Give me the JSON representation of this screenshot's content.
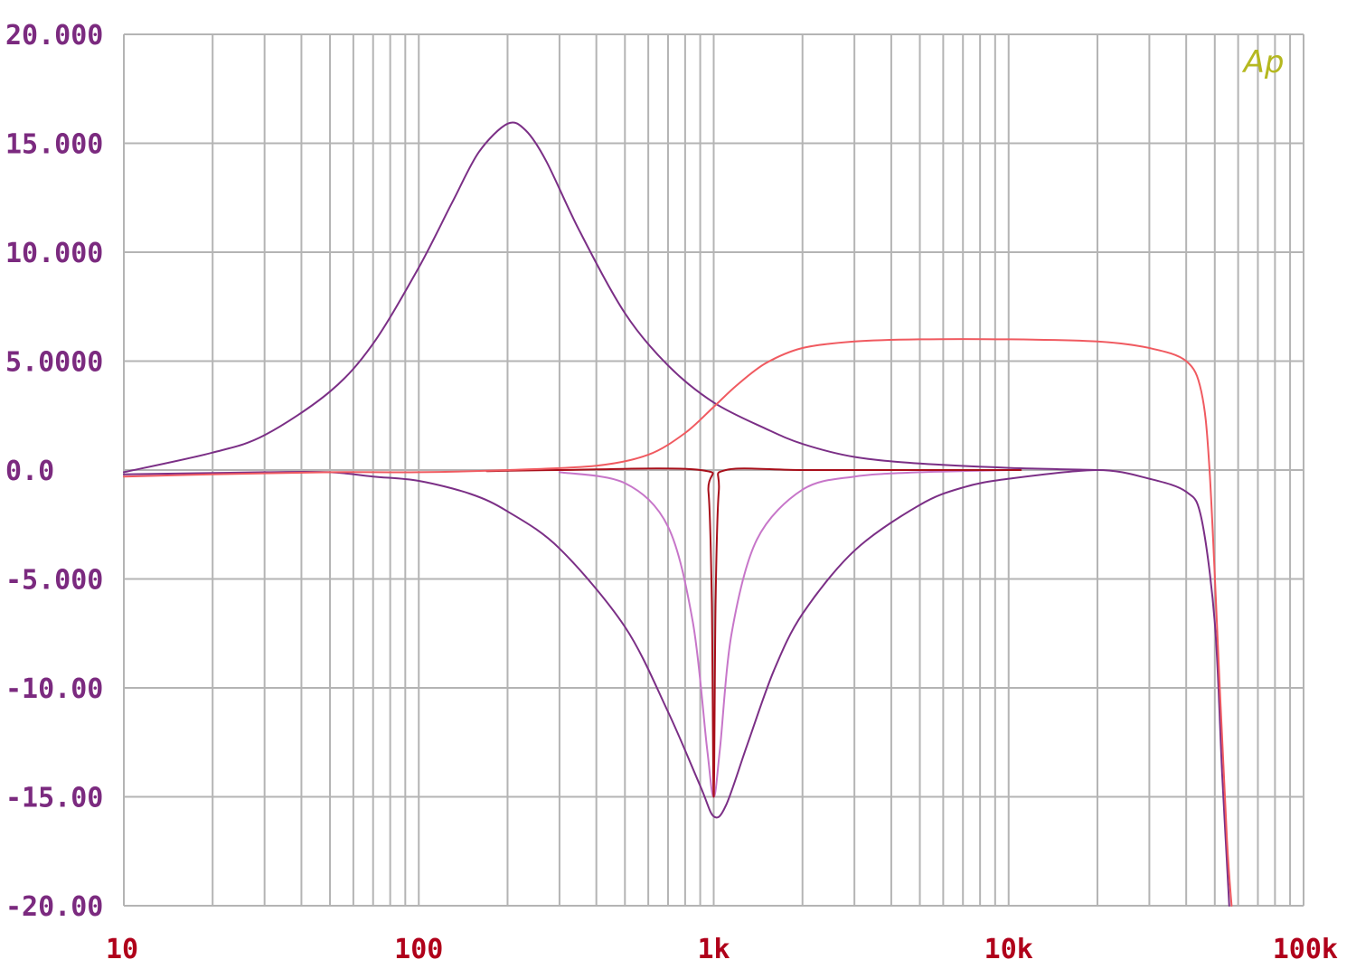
{
  "chart_data": {
    "type": "line",
    "title": "",
    "xlabel": "",
    "ylabel": "",
    "x_scale": "log",
    "xlim": [
      10,
      100000
    ],
    "ylim": [
      -20,
      20
    ],
    "grid": true,
    "logo_text": "Ap",
    "x_ticks": [
      {
        "value": 10,
        "label": "10"
      },
      {
        "value": 100,
        "label": "100"
      },
      {
        "value": 1000,
        "label": "1k"
      },
      {
        "value": 10000,
        "label": "10k"
      },
      {
        "value": 100000,
        "label": "100k"
      }
    ],
    "y_ticks": [
      {
        "value": 20,
        "label": "20.000"
      },
      {
        "value": 15,
        "label": "15.000"
      },
      {
        "value": 10,
        "label": "10.000"
      },
      {
        "value": 5,
        "label": "5.0000"
      },
      {
        "value": 0,
        "label": "0.0"
      },
      {
        "value": -5,
        "label": "-5.000"
      },
      {
        "value": -10,
        "label": "-10.00"
      },
      {
        "value": -15,
        "label": "-15.00"
      },
      {
        "value": -20,
        "label": "-20.00"
      }
    ],
    "colors": {
      "grid": "#b4b4b4",
      "y_labels": "#7b2a7f",
      "x_labels": "#b0001a",
      "logo": "#b5b820"
    },
    "series": [
      {
        "color": "#7b2f86",
        "points": [
          [
            10,
            -0.1
          ],
          [
            20,
            0.8
          ],
          [
            30,
            1.6
          ],
          [
            50,
            3.6
          ],
          [
            70,
            5.8
          ],
          [
            100,
            9.3
          ],
          [
            130,
            12.3
          ],
          [
            160,
            14.6
          ],
          [
            200,
            15.9
          ],
          [
            230,
            15.6
          ],
          [
            270,
            14.2
          ],
          [
            350,
            11.0
          ],
          [
            500,
            7.2
          ],
          [
            700,
            4.8
          ],
          [
            1000,
            3.1
          ],
          [
            1500,
            1.9
          ],
          [
            2000,
            1.2
          ],
          [
            3000,
            0.6
          ],
          [
            5000,
            0.3
          ],
          [
            10000,
            0.1
          ],
          [
            20000,
            0.0
          ]
        ]
      },
      {
        "color": "#7b2f86",
        "points": [
          [
            10,
            -0.2
          ],
          [
            30,
            -0.1
          ],
          [
            50,
            -0.1
          ],
          [
            70,
            -0.3
          ],
          [
            100,
            -0.5
          ],
          [
            150,
            -1.1
          ],
          [
            200,
            -1.9
          ],
          [
            300,
            -3.6
          ],
          [
            500,
            -7.2
          ],
          [
            700,
            -11.1
          ],
          [
            900,
            -14.5
          ],
          [
            1000,
            -15.9
          ],
          [
            1100,
            -15.4
          ],
          [
            1300,
            -12.6
          ],
          [
            1600,
            -9.2
          ],
          [
            2000,
            -6.6
          ],
          [
            3000,
            -3.7
          ],
          [
            5000,
            -1.6
          ],
          [
            7000,
            -0.8
          ],
          [
            10000,
            -0.4
          ],
          [
            20000,
            0.0
          ],
          [
            30000,
            -0.4
          ],
          [
            40000,
            -1.0
          ],
          [
            45000,
            -2.2
          ],
          [
            50000,
            -7.0
          ],
          [
            53000,
            -14.0
          ],
          [
            56000,
            -20.0
          ]
        ]
      },
      {
        "color": "#c776c9",
        "points": [
          [
            300,
            -0.1
          ],
          [
            500,
            -0.6
          ],
          [
            700,
            -2.6
          ],
          [
            850,
            -7.0
          ],
          [
            950,
            -12.8
          ],
          [
            1000,
            -15.0
          ],
          [
            1050,
            -12.8
          ],
          [
            1150,
            -7.5
          ],
          [
            1400,
            -3.2
          ],
          [
            2000,
            -0.9
          ],
          [
            3000,
            -0.3
          ],
          [
            5000,
            -0.1
          ],
          [
            10000,
            0.0
          ]
        ]
      },
      {
        "color": "#a80f1a",
        "points": [
          [
            170,
            -0.05
          ],
          [
            300,
            0.0
          ],
          [
            900,
            0.0
          ],
          [
            960,
            -1.0
          ],
          [
            985,
            -6.0
          ],
          [
            1000,
            -15.0
          ],
          [
            1015,
            -6.0
          ],
          [
            1040,
            -1.0
          ],
          [
            1100,
            0.0
          ],
          [
            2000,
            0.0
          ],
          [
            5000,
            0.0
          ],
          [
            11000,
            0.0
          ]
        ]
      },
      {
        "color": "#f05a60",
        "points": [
          [
            10,
            -0.3
          ],
          [
            20,
            -0.2
          ],
          [
            50,
            -0.1
          ],
          [
            100,
            -0.1
          ],
          [
            200,
            0.0
          ],
          [
            400,
            0.2
          ],
          [
            600,
            0.7
          ],
          [
            800,
            1.7
          ],
          [
            1000,
            2.9
          ],
          [
            1200,
            3.9
          ],
          [
            1500,
            4.9
          ],
          [
            2000,
            5.6
          ],
          [
            3000,
            5.9
          ],
          [
            5000,
            6.0
          ],
          [
            10000,
            6.0
          ],
          [
            20000,
            5.9
          ],
          [
            30000,
            5.6
          ],
          [
            40000,
            5.0
          ],
          [
            45000,
            3.6
          ],
          [
            48000,
            0.0
          ],
          [
            52000,
            -10.0
          ],
          [
            55000,
            -17.0
          ],
          [
            57000,
            -20.0
          ]
        ]
      }
    ]
  }
}
